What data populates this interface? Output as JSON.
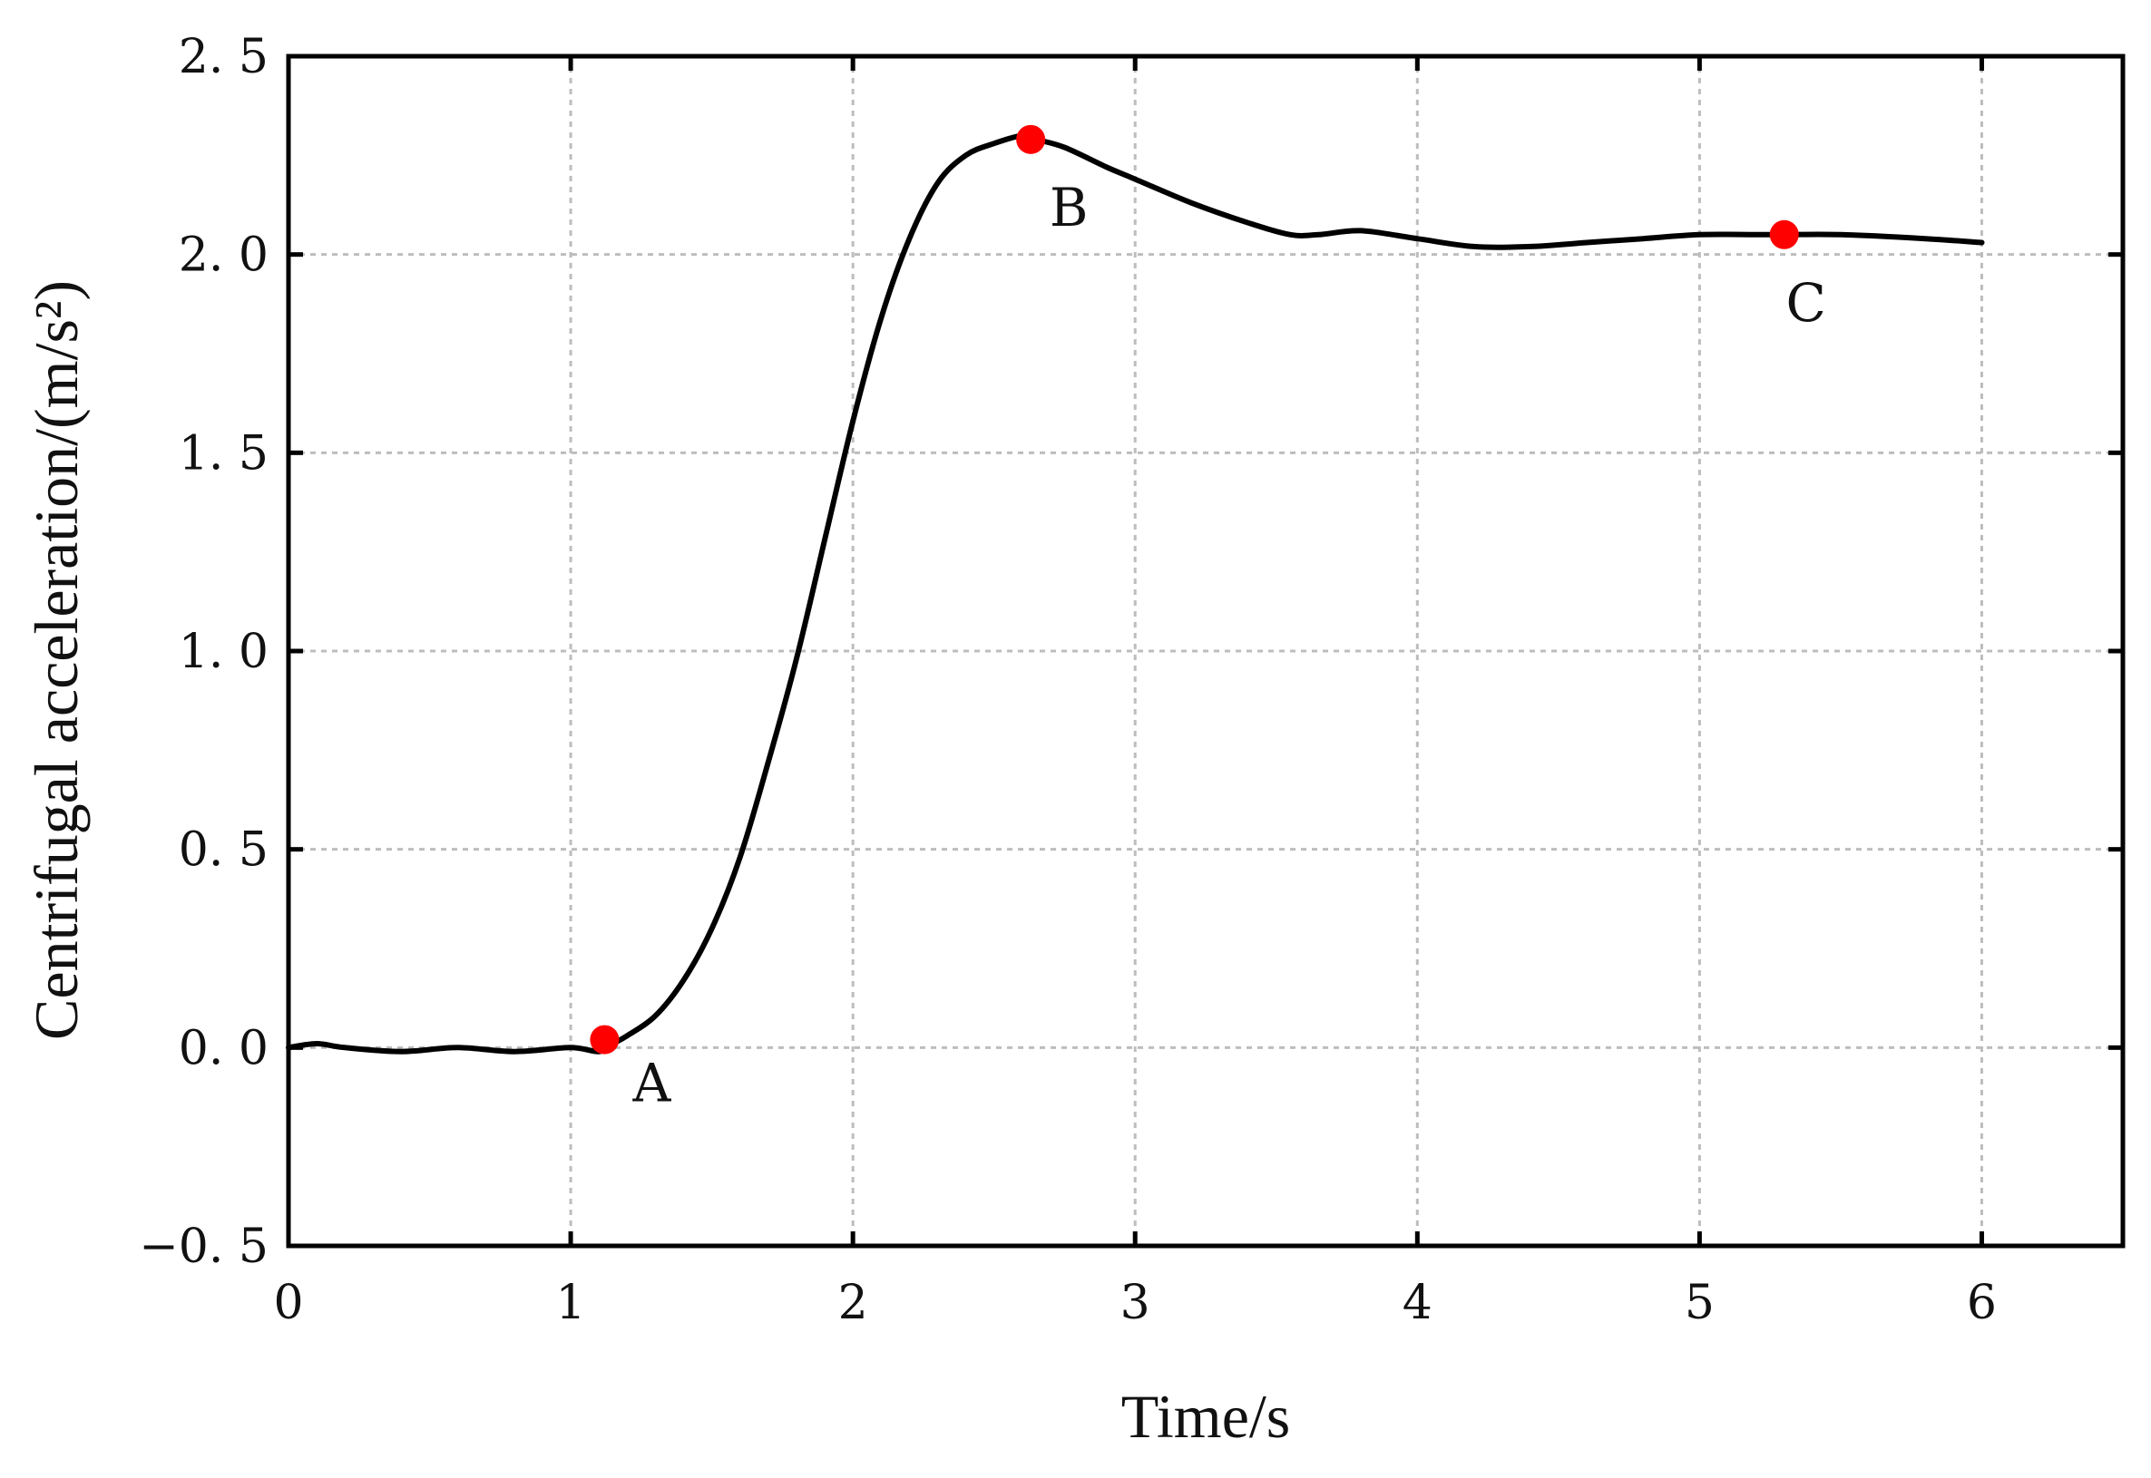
{
  "chart_data": {
    "type": "line",
    "xlabel": "Time/s",
    "ylabel": "Centrifugal acceleration/(m/s²)",
    "xlim": [
      0,
      6.5
    ],
    "ylim": [
      -0.5,
      2.5
    ],
    "x_ticks": [
      0,
      1,
      2,
      3,
      4,
      5,
      6
    ],
    "y_ticks": [
      -0.5,
      0.0,
      0.5,
      1.0,
      1.5,
      2.0,
      2.5
    ],
    "x_tick_labels": [
      "0",
      "1",
      "2",
      "3",
      "4",
      "5",
      "6"
    ],
    "y_tick_labels": [
      "−0. 5",
      "0. 0",
      "0. 5",
      "1. 0",
      "1. 5",
      "2. 0",
      "2. 5"
    ],
    "grid": true,
    "line_color": "#000000",
    "marker_color": "#ff0000",
    "grid_color": "#bdbdbd",
    "series": [
      {
        "x": [
          0.0,
          0.1,
          0.2,
          0.4,
          0.6,
          0.8,
          1.0,
          1.1,
          1.15,
          1.2,
          1.3,
          1.4,
          1.5,
          1.6,
          1.7,
          1.8,
          1.9,
          2.0,
          2.1,
          2.2,
          2.3,
          2.4,
          2.5,
          2.6,
          2.65,
          2.75,
          2.9,
          3.0,
          3.2,
          3.4,
          3.55,
          3.65,
          3.8,
          4.0,
          4.2,
          4.4,
          4.6,
          4.8,
          5.0,
          5.2,
          5.3,
          5.5,
          5.8,
          6.0
        ],
        "values": [
          0.0,
          0.01,
          0.0,
          -0.01,
          0.0,
          -0.01,
          0.0,
          -0.01,
          0.01,
          0.03,
          0.08,
          0.17,
          0.3,
          0.48,
          0.72,
          0.98,
          1.28,
          1.58,
          1.84,
          2.04,
          2.18,
          2.25,
          2.28,
          2.3,
          2.29,
          2.27,
          2.22,
          2.19,
          2.13,
          2.08,
          2.05,
          2.05,
          2.06,
          2.04,
          2.02,
          2.02,
          2.03,
          2.04,
          2.05,
          2.05,
          2.05,
          2.05,
          2.04,
          2.03
        ]
      }
    ],
    "points": [
      {
        "label": "A",
        "x": 1.12,
        "y": 0.02
      },
      {
        "label": "B",
        "x": 2.63,
        "y": 2.29
      },
      {
        "label": "C",
        "x": 5.3,
        "y": 2.05
      }
    ]
  }
}
